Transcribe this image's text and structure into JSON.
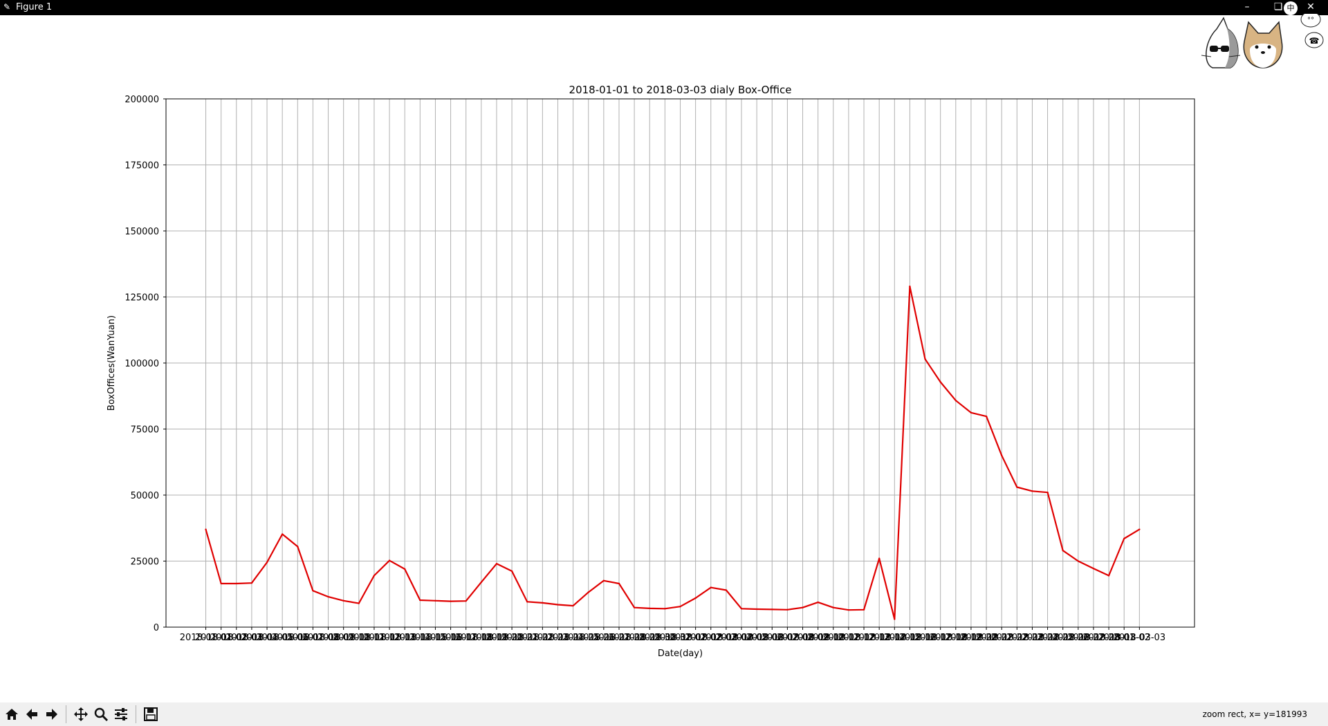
{
  "window": {
    "title": "Figure 1",
    "ime_label": "中"
  },
  "toolbar": {
    "buttons": [
      "home-icon",
      "back-icon",
      "forward-icon",
      "pan-icon",
      "zoom-icon",
      "configure-subplots-icon",
      "save-icon"
    ],
    "status": "zoom rect, x= y=181993"
  },
  "colors": {
    "line": "#e00000",
    "grid": "#b0b0b0",
    "titlebar": "#000000"
  },
  "chart_data": {
    "type": "line",
    "title": "2018-01-01 to 2018-03-03 dialy Box-Office",
    "xlabel": "Date(day)",
    "ylabel": "BoxOffices(WanYuan)",
    "ylim": [
      0,
      200000
    ],
    "yticks": [
      0,
      25000,
      50000,
      75000,
      100000,
      125000,
      150000,
      175000,
      200000
    ],
    "xtick_labels": [
      "2018-01-01",
      "2018-01-02",
      "2018-01-03",
      "2018-01-04",
      "2018-01-05",
      "2018-01-06",
      "2018-01-07",
      "2018-01-08",
      "2018-01-09",
      "2018-01-10",
      "2018-01-11",
      "2018-01-12",
      "2018-01-13",
      "2018-01-14",
      "2018-01-15",
      "2018-01-16",
      "2018-01-17",
      "2018-01-18",
      "2018-01-19",
      "2018-01-20",
      "2018-01-21",
      "2018-01-22",
      "2018-01-23",
      "2018-01-24",
      "2018-01-25",
      "2018-01-26",
      "2018-01-27",
      "2018-01-28",
      "2018-01-29",
      "2018-01-30",
      "2018-01-31",
      "2018-02-01",
      "2018-02-02",
      "2018-02-03",
      "2018-02-04",
      "2018-02-05",
      "2018-02-06",
      "2018-02-07",
      "2018-02-08",
      "2018-02-09",
      "2018-02-10",
      "2018-02-11",
      "2018-02-12",
      "2018-02-13",
      "2018-02-14",
      "2018-02-15",
      "2018-02-16",
      "2018-02-17",
      "2018-02-18",
      "2018-02-19",
      "2018-02-20",
      "2018-02-21",
      "2018-02-22",
      "2018-02-23",
      "2018-02-24",
      "2018-02-25",
      "2018-02-26",
      "2018-02-27",
      "2018-02-28",
      "2018-03-01",
      "2018-03-02",
      "2018-03-03"
    ],
    "x_range": [
      -2.6,
      64.6
    ],
    "grid": true,
    "series": [
      {
        "name": "Box-Office",
        "color": "#e00000",
        "values": [
          37000,
          16500,
          16500,
          16700,
          24500,
          35200,
          30500,
          13800,
          11500,
          10000,
          9000,
          19500,
          25200,
          22000,
          10200,
          10000,
          9800,
          9900,
          17000,
          24000,
          21200,
          9600,
          9200,
          8500,
          8100,
          13200,
          17600,
          16500,
          7400,
          7100,
          7000,
          7800,
          11000,
          15000,
          14000,
          7000,
          6800,
          6700,
          6600,
          7400,
          9400,
          7400,
          6500,
          6600,
          26000,
          3000,
          129000,
          101500,
          92800,
          85800,
          81200,
          79800,
          65000,
          53000,
          51500,
          51000,
          29000,
          25000,
          22200,
          19500,
          33500,
          37000
        ]
      }
    ]
  }
}
